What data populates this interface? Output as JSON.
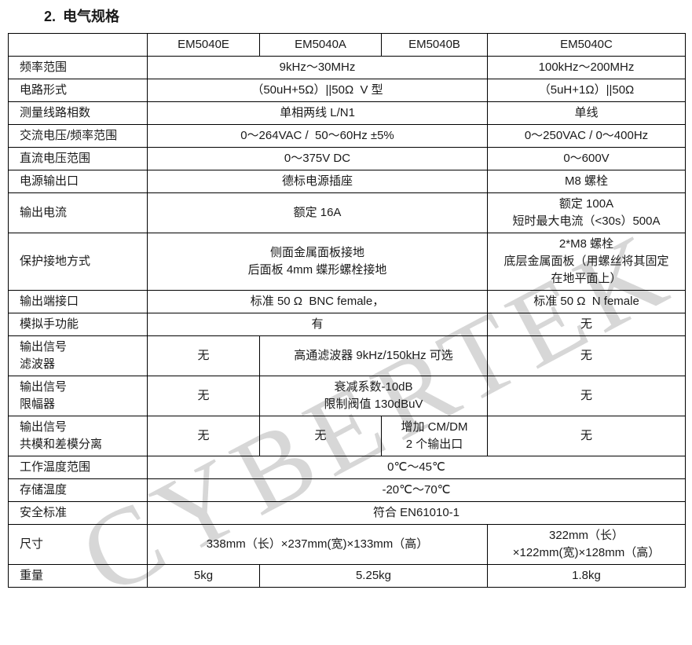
{
  "page": {
    "heading_number": "2.",
    "heading_text": "电气规格"
  },
  "watermark": {
    "text": "CYBERTEK",
    "color": "#d7d7d7"
  },
  "table": {
    "columns": [
      "",
      "EM5040E",
      "EM5040A",
      "EM5040B",
      "EM5040C"
    ],
    "rows": [
      {
        "label": [
          "频率范围"
        ],
        "cells": [
          {
            "span": 3,
            "lines": [
              "9kHz～30MHz"
            ]
          },
          {
            "span": 1,
            "lines": [
              "100kHz～200MHz"
            ]
          }
        ]
      },
      {
        "label": [
          "电路形式"
        ],
        "cells": [
          {
            "span": 3,
            "lines": [
              "（50uH+5Ω）||50Ω  V 型"
            ]
          },
          {
            "span": 1,
            "lines": [
              "（5uH+1Ω）||50Ω"
            ]
          }
        ]
      },
      {
        "label": [
          "测量线路相数"
        ],
        "cells": [
          {
            "span": 3,
            "lines": [
              "单相两线 L/N1"
            ]
          },
          {
            "span": 1,
            "lines": [
              "单线"
            ]
          }
        ]
      },
      {
        "label": [
          "交流电压/频率范围"
        ],
        "cells": [
          {
            "span": 3,
            "lines": [
              "0～264VAC /  50～60Hz ±5%"
            ]
          },
          {
            "span": 1,
            "lines": [
              "0～250VAC / 0～400Hz"
            ]
          }
        ]
      },
      {
        "label": [
          "直流电压范围"
        ],
        "cells": [
          {
            "span": 3,
            "lines": [
              "0～375V DC"
            ]
          },
          {
            "span": 1,
            "lines": [
              "0～600V"
            ]
          }
        ]
      },
      {
        "label": [
          "电源输出口"
        ],
        "cells": [
          {
            "span": 3,
            "lines": [
              "德标电源插座"
            ]
          },
          {
            "span": 1,
            "lines": [
              "M8 螺栓"
            ]
          }
        ]
      },
      {
        "label": [
          "输出电流"
        ],
        "cells": [
          {
            "span": 3,
            "lines": [
              "额定 16A"
            ]
          },
          {
            "span": 1,
            "lines": [
              "额定 100A",
              "短时最大电流（<30s）500A"
            ]
          }
        ]
      },
      {
        "label": [
          "保护接地方式"
        ],
        "cells": [
          {
            "span": 3,
            "lines": [
              "侧面金属面板接地",
              "后面板 4mm 蝶形螺栓接地"
            ]
          },
          {
            "span": 1,
            "lines": [
              "2*M8 螺栓",
              "底层金属面板（用螺丝将其固定",
              "在地平面上）"
            ]
          }
        ]
      },
      {
        "label": [
          "输出端接口"
        ],
        "cells": [
          {
            "span": 3,
            "lines": [
              "标准 50 Ω  BNC female，"
            ]
          },
          {
            "span": 1,
            "lines": [
              "标准 50 Ω  N female"
            ]
          }
        ]
      },
      {
        "label": [
          "模拟手功能"
        ],
        "cells": [
          {
            "span": 3,
            "lines": [
              "有"
            ]
          },
          {
            "span": 1,
            "lines": [
              "无"
            ]
          }
        ]
      },
      {
        "label": [
          "输出信号",
          "滤波器"
        ],
        "cells": [
          {
            "span": 1,
            "lines": [
              "无"
            ]
          },
          {
            "span": 2,
            "lines": [
              "高通滤波器 9kHz/150kHz 可选"
            ]
          },
          {
            "span": 1,
            "lines": [
              "无"
            ]
          }
        ]
      },
      {
        "label": [
          "输出信号",
          "限幅器"
        ],
        "cells": [
          {
            "span": 1,
            "lines": [
              "无"
            ]
          },
          {
            "span": 2,
            "lines": [
              "衰减系数-10dB",
              "限制阀值 130dBuV"
            ]
          },
          {
            "span": 1,
            "lines": [
              "无"
            ]
          }
        ]
      },
      {
        "label": [
          "输出信号",
          "共模和差模分离"
        ],
        "cells": [
          {
            "span": 1,
            "lines": [
              "无"
            ]
          },
          {
            "span": 1,
            "lines": [
              "无"
            ]
          },
          {
            "span": 1,
            "lines": [
              "增加 CM/DM",
              "2 个输出口"
            ]
          },
          {
            "span": 1,
            "lines": [
              "无"
            ]
          }
        ]
      },
      {
        "label": [
          "工作温度范围"
        ],
        "cells": [
          {
            "span": 4,
            "lines": [
              "0℃～45℃"
            ]
          }
        ]
      },
      {
        "label": [
          "存储温度"
        ],
        "cells": [
          {
            "span": 4,
            "lines": [
              "-20℃～70℃"
            ]
          }
        ]
      },
      {
        "label": [
          "安全标准"
        ],
        "cells": [
          {
            "span": 4,
            "lines": [
              "符合 EN61010-1"
            ]
          }
        ]
      },
      {
        "label": [
          "尺寸"
        ],
        "cells": [
          {
            "span": 3,
            "lines": [
              "338mm（长）×237mm(宽)×133mm（高）"
            ]
          },
          {
            "span": 1,
            "lines": [
              "322mm（长）",
              "×122mm(宽)×128mm（高）"
            ]
          }
        ]
      },
      {
        "label": [
          "重量"
        ],
        "cells": [
          {
            "span": 1,
            "lines": [
              "5kg"
            ]
          },
          {
            "span": 2,
            "lines": [
              "5.25kg"
            ]
          },
          {
            "span": 1,
            "lines": [
              "1.8kg"
            ]
          }
        ]
      }
    ]
  }
}
